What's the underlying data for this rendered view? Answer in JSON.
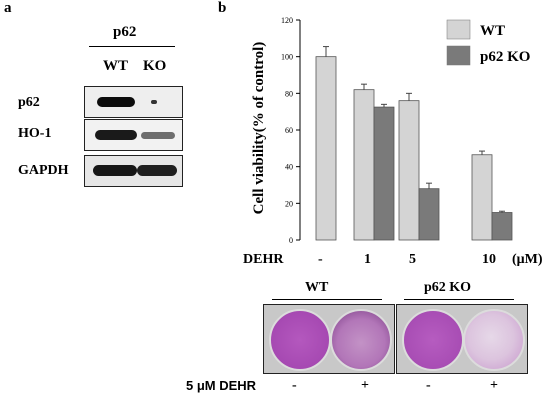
{
  "panel_a": {
    "label": "a",
    "group": "p62",
    "lanes": [
      "WT",
      "KO"
    ],
    "rows": [
      "p62",
      "HO-1",
      "GAPDH"
    ]
  },
  "panel_b": {
    "label": "b",
    "dish": {
      "groups": [
        "WT",
        "p62 KO"
      ],
      "treatment_label": "5 μM DEHR",
      "treatment_marks": [
        "-",
        "+",
        "-",
        "+"
      ]
    }
  },
  "colors": {
    "wt": "#d4d4d4",
    "ko": "#7a7a7a",
    "stain": "#b24fb9"
  },
  "chart_data": {
    "type": "bar",
    "ylabel": "Cell viability(% of control)",
    "ylim": [
      0,
      120
    ],
    "yticks": [
      0,
      20,
      40,
      60,
      80,
      100,
      120
    ],
    "x_caption": "DEHR",
    "x_unit": "(μM)",
    "categories": [
      "-",
      "1",
      "5",
      "10"
    ],
    "series": [
      {
        "name": "WT",
        "values": [
          100,
          82,
          76,
          46.5
        ],
        "errors": [
          5.5,
          3,
          4,
          2
        ]
      },
      {
        "name": "p62 KO",
        "values": [
          null,
          72.5,
          28,
          15
        ],
        "errors": [
          null,
          1.5,
          3,
          0.7
        ]
      }
    ],
    "legend_position": "top-right"
  }
}
